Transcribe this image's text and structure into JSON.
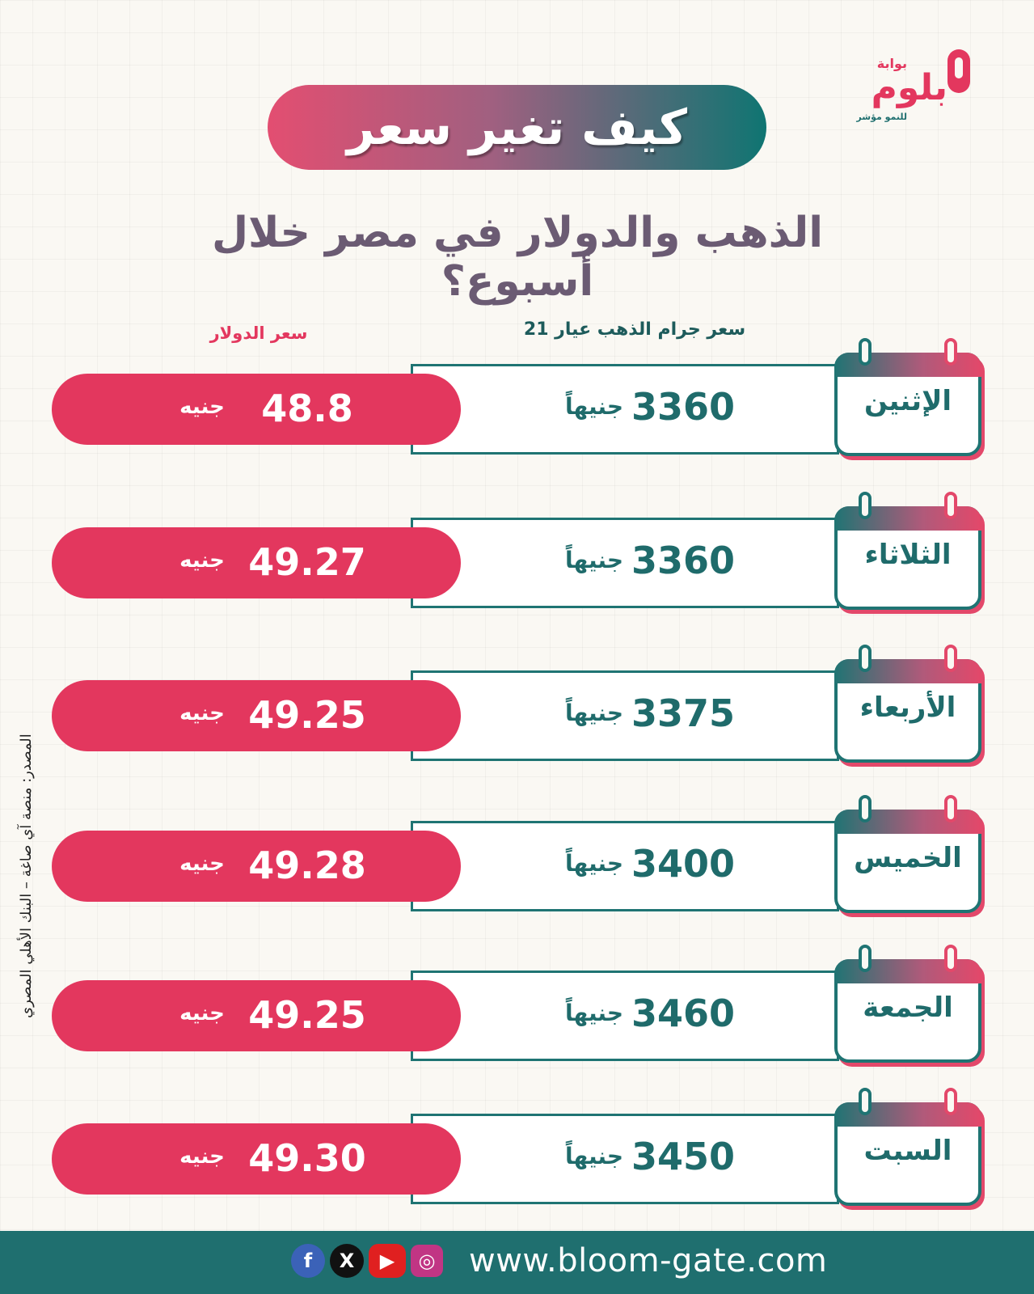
{
  "brand": {
    "portal_label": "بوابة",
    "name": "بلوم",
    "tagline": "للنمو مؤشر"
  },
  "title": "كيف تغير سعر",
  "subtitle": "الذهب والدولار في مصر خلال أسبوع؟",
  "headers": {
    "gold": "سعر جرام الذهب عيار 21",
    "usd": "سعر الدولار"
  },
  "rows": [
    {
      "day": "الإثنين",
      "gold": "3360",
      "gold_unit": "جنيهاً",
      "usd": "48.8",
      "usd_unit": "جنيه"
    },
    {
      "day": "الثلاثاء",
      "gold": "3360",
      "gold_unit": "جنيهاً",
      "usd": "49.27",
      "usd_unit": "جنيه"
    },
    {
      "day": "الأربعاء",
      "gold": "3375",
      "gold_unit": "جنيهاً",
      "usd": "49.25",
      "usd_unit": "جنيه"
    },
    {
      "day": "الخميس",
      "gold": "3400",
      "gold_unit": "جنيهاً",
      "usd": "49.28",
      "usd_unit": "جنيه"
    },
    {
      "day": "الجمعة",
      "gold": "3460",
      "gold_unit": "جنيهاً",
      "usd": "49.25",
      "usd_unit": "جنيه"
    },
    {
      "day": "السبت",
      "gold": "3450",
      "gold_unit": "جنيهاً",
      "usd": "49.30",
      "usd_unit": "جنيه"
    }
  ],
  "source": "المصدر: منصة آي صاغة – البنك الأهلي المصري",
  "footer": {
    "url": "www.bloom-gate.com",
    "social_icons": [
      "facebook-icon",
      "x-icon",
      "youtube-icon",
      "instagram-icon"
    ]
  },
  "colors": {
    "teal": "#1f7473",
    "pink": "#e3375e"
  }
}
